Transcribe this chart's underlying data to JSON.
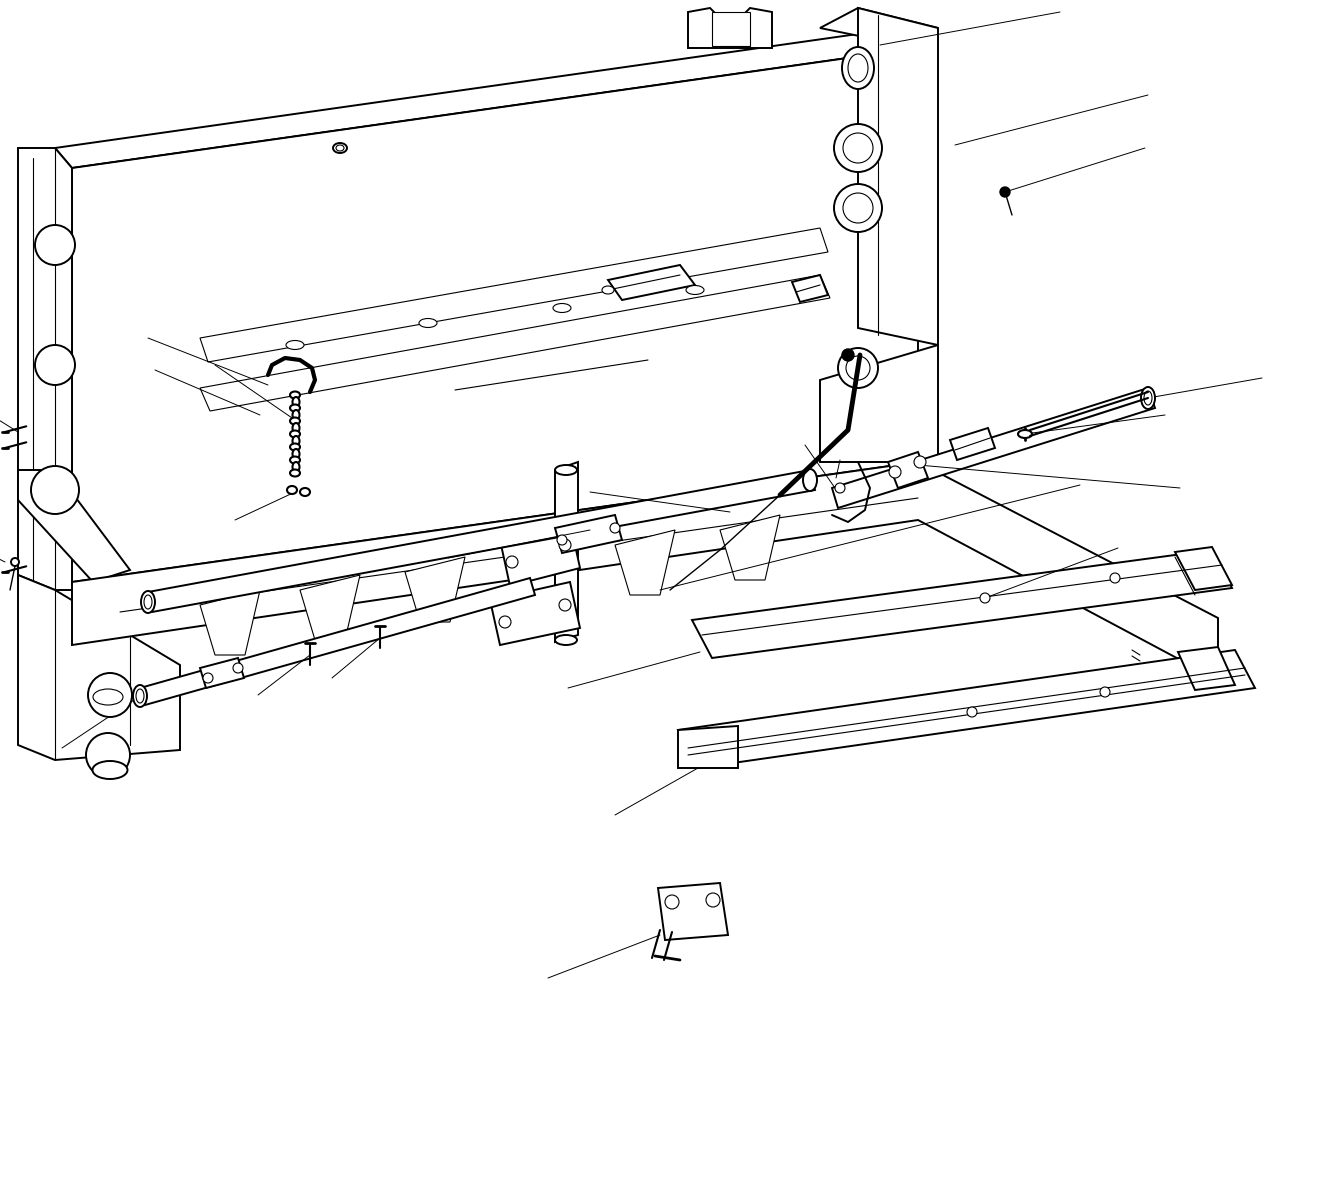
{
  "background_color": "#ffffff",
  "line_color": "#000000",
  "lw_main": 1.4,
  "lw_thin": 0.8,
  "lw_leader": 0.7,
  "figsize": [
    13.2,
    11.91
  ],
  "dpi": 100
}
